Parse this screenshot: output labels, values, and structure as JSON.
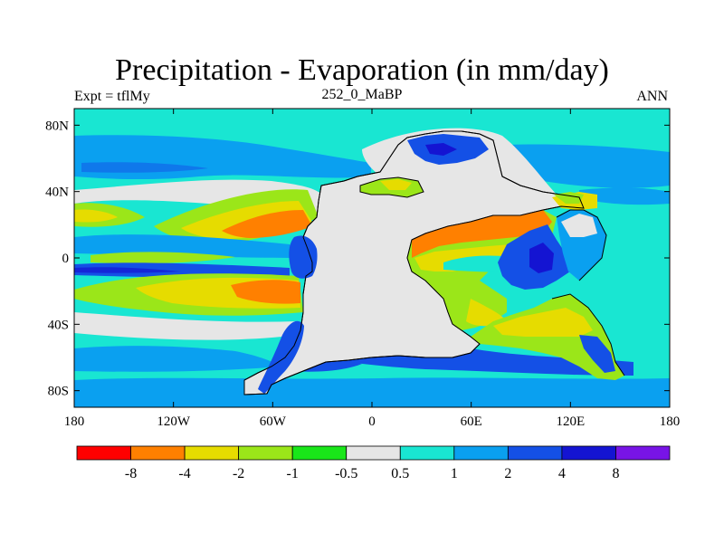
{
  "title": "Precipitation - Evaporation (in mm/day)",
  "left_string": "Expt = tflMy",
  "center_string": "252_0_MaBP",
  "right_string": "ANN",
  "map": {
    "lon_ticks": [
      "180",
      "120W",
      "60W",
      "0",
      "60E",
      "120E",
      "180"
    ],
    "lon_values": [
      -180,
      -120,
      -60,
      0,
      60,
      120,
      180
    ],
    "lat_ticks": [
      "80N",
      "40N",
      "0",
      "40S",
      "80S"
    ],
    "lat_values": [
      80,
      40,
      0,
      -40,
      -80
    ],
    "lon_range": [
      -180,
      180
    ],
    "lat_range": [
      -90,
      90
    ]
  },
  "colorbar": {
    "colors": [
      "#ff0000",
      "#ff8000",
      "#e6dc00",
      "#9be619",
      "#19e619",
      "#e6e6e6",
      "#19e6d2",
      "#0aa0f0",
      "#1450e6",
      "#1414d2",
      "#7814e6"
    ],
    "labels": [
      "-8",
      "-4",
      "-2",
      "-1",
      "-0.5",
      "0.5",
      "1",
      "2",
      "4",
      "8"
    ]
  }
}
